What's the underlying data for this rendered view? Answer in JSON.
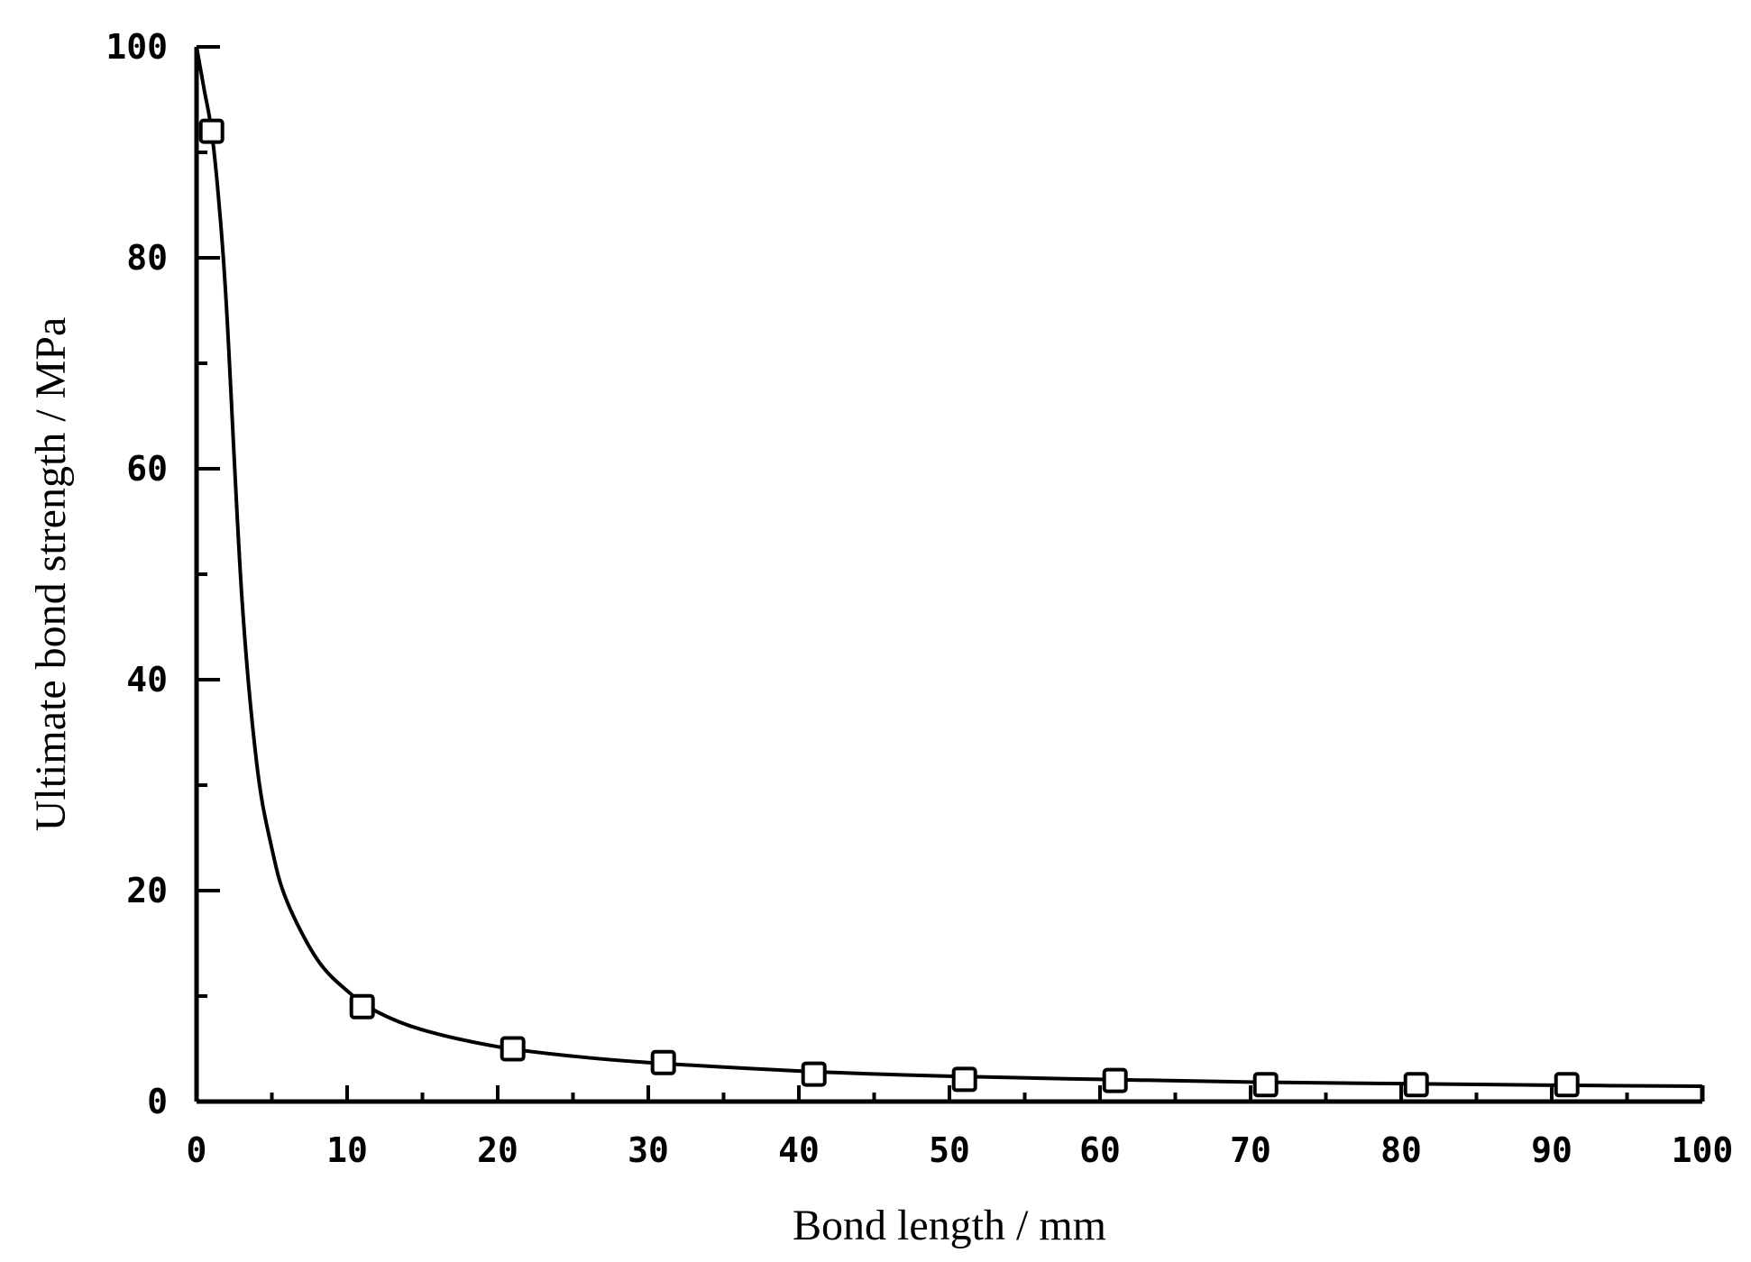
{
  "chart_data": {
    "type": "scatter",
    "xlabel": "Bond length / mm",
    "ylabel": "Ultimate bond strength / MPa",
    "xlim": [
      0,
      100
    ],
    "ylim": [
      0,
      100
    ],
    "x_ticks": [
      "0",
      "10",
      "20",
      "30",
      "40",
      "50",
      "60",
      "70",
      "80",
      "90",
      "100"
    ],
    "y_ticks": [
      "0",
      "20",
      "40",
      "60",
      "80",
      "100"
    ],
    "grid": false,
    "series": [
      {
        "marker": "open-square",
        "x": [
          1,
          11,
          21,
          31,
          41,
          51,
          61,
          71,
          81,
          91
        ],
        "y": [
          92,
          9,
          5,
          3.7,
          2.6,
          2.1,
          2.0,
          1.6,
          1.6,
          1.6
        ]
      }
    ],
    "fit_curve": {
      "x": [
        0,
        0.5,
        1,
        1.5,
        2,
        3,
        4,
        5,
        6,
        8,
        10,
        12,
        15,
        20,
        25,
        30,
        40,
        50,
        60,
        70,
        80,
        90,
        100
      ],
      "y": [
        100,
        96,
        92,
        85,
        75,
        48,
        32,
        24,
        19,
        13.5,
        10.5,
        8.5,
        6.8,
        5.2,
        4.3,
        3.7,
        2.9,
        2.4,
        2.1,
        1.85,
        1.7,
        1.55,
        1.45
      ]
    }
  }
}
